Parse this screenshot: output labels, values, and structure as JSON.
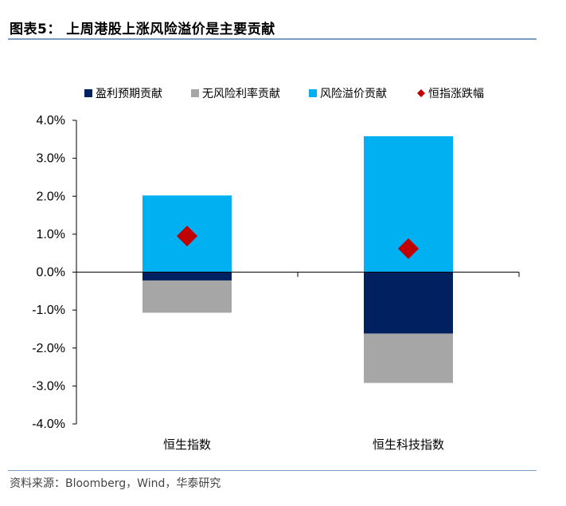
{
  "title": "图表5： 上周港股上涨风险溢价是主要贡献",
  "source": "资料来源：Bloomberg，Wind，华泰研究",
  "colors": {
    "earnings": "#002060",
    "riskfree": "#a6a6a6",
    "premium": "#00b0f0",
    "index": "#c00000",
    "rule": "#7b9cc4"
  },
  "chart_data": {
    "type": "bar",
    "stacked": true,
    "categories": [
      "恒生指数",
      "恒生科技指数"
    ],
    "series": [
      {
        "name": "盈利预期贡献",
        "kind": "bar",
        "color_key": "earnings",
        "values": [
          -0.22,
          -1.62
        ]
      },
      {
        "name": "无风险利率贡献",
        "kind": "bar",
        "color_key": "riskfree",
        "values": [
          -0.85,
          -1.3
        ]
      },
      {
        "name": "风险溢价贡献",
        "kind": "bar",
        "color_key": "premium",
        "values": [
          2.02,
          3.58
        ]
      },
      {
        "name": "恒指涨跌幅",
        "kind": "marker",
        "marker": "diamond",
        "color_key": "index",
        "values": [
          0.95,
          0.62
        ]
      }
    ],
    "ylim": [
      -4.0,
      4.0
    ],
    "yticks": [
      "4.0%",
      "3.0%",
      "2.0%",
      "1.0%",
      "0.0%",
      "-1.0%",
      "-2.0%",
      "-3.0%",
      "-4.0%"
    ],
    "ytick_values": [
      4,
      3,
      2,
      1,
      0,
      -1,
      -2,
      -3,
      -4
    ],
    "grid": false,
    "legend_position": "top"
  }
}
